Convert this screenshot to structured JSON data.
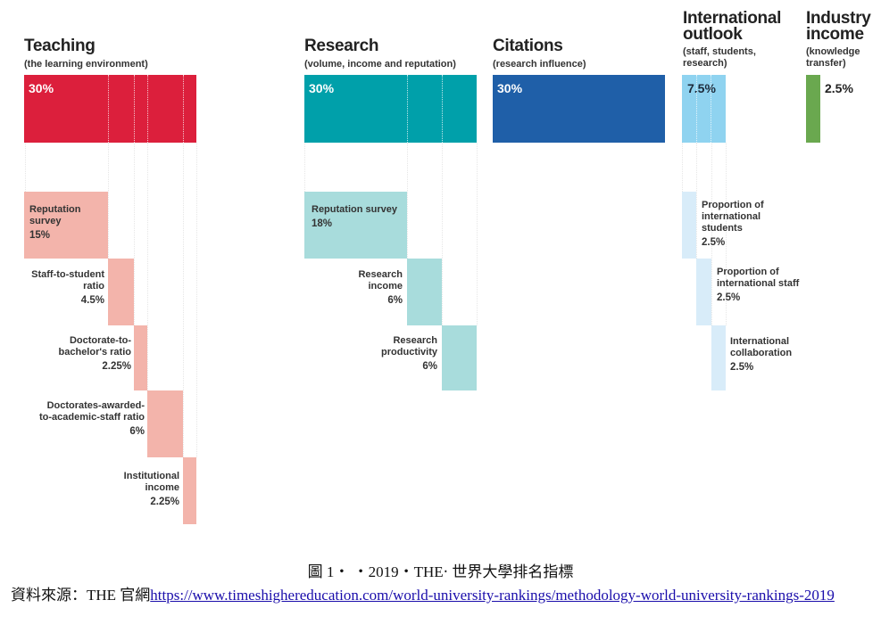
{
  "categories": {
    "teaching": {
      "title": "Teaching",
      "subtitle": "(the learning environment)",
      "weight": "30%",
      "color": "#dc1f3c"
    },
    "research": {
      "title": "Research",
      "subtitle": "(volume, income and reputation)",
      "weight": "30%",
      "color": "#00a0aa"
    },
    "citations": {
      "title": "Citations",
      "subtitle": "(research influence)",
      "weight": "30%",
      "color": "#1f5fa8"
    },
    "international": {
      "title": "International outlook",
      "subtitle": "(staff, students, research)",
      "weight": "7.5%",
      "color": "#8fd3f0"
    },
    "industry": {
      "title": "Industry income",
      "subtitle": "(knowledge transfer)",
      "weight": "2.5%",
      "color": "#6aa84f"
    }
  },
  "teaching_items": [
    {
      "label": "Reputation survey",
      "value": "15%"
    },
    {
      "label": "Staff-to-student ratio",
      "value": "4.5%"
    },
    {
      "label": "Doctorate-to-bachelor's ratio",
      "value": "2.25%"
    },
    {
      "label": "Doctorates-awarded-to-academic-staff ratio",
      "value": "6%"
    },
    {
      "label": "Institutional income",
      "value": "2.25%"
    }
  ],
  "research_items": [
    {
      "label": "Reputation survey",
      "value": "18%"
    },
    {
      "label": "Research income",
      "value": "6%"
    },
    {
      "label": "Research productivity",
      "value": "6%"
    }
  ],
  "international_items": [
    {
      "label": "Proportion of international students",
      "value": "2.5%"
    },
    {
      "label": "Proportion of international staff",
      "value": "2.5%"
    },
    {
      "label": "International collaboration",
      "value": "2.5%"
    }
  ],
  "sub_colors": {
    "teaching": "#f3b4ab",
    "research": "#a8dcdc",
    "international": "#d8ecf9"
  },
  "caption": "圖 1‧ ‧2019‧THE‧ 世界大學排名指標",
  "source": {
    "prefix": "資料來源：THE 官網",
    "url": "https://www.timeshighereducation.com/world-university-rankings/methodology-world-university-rankings-2019"
  }
}
